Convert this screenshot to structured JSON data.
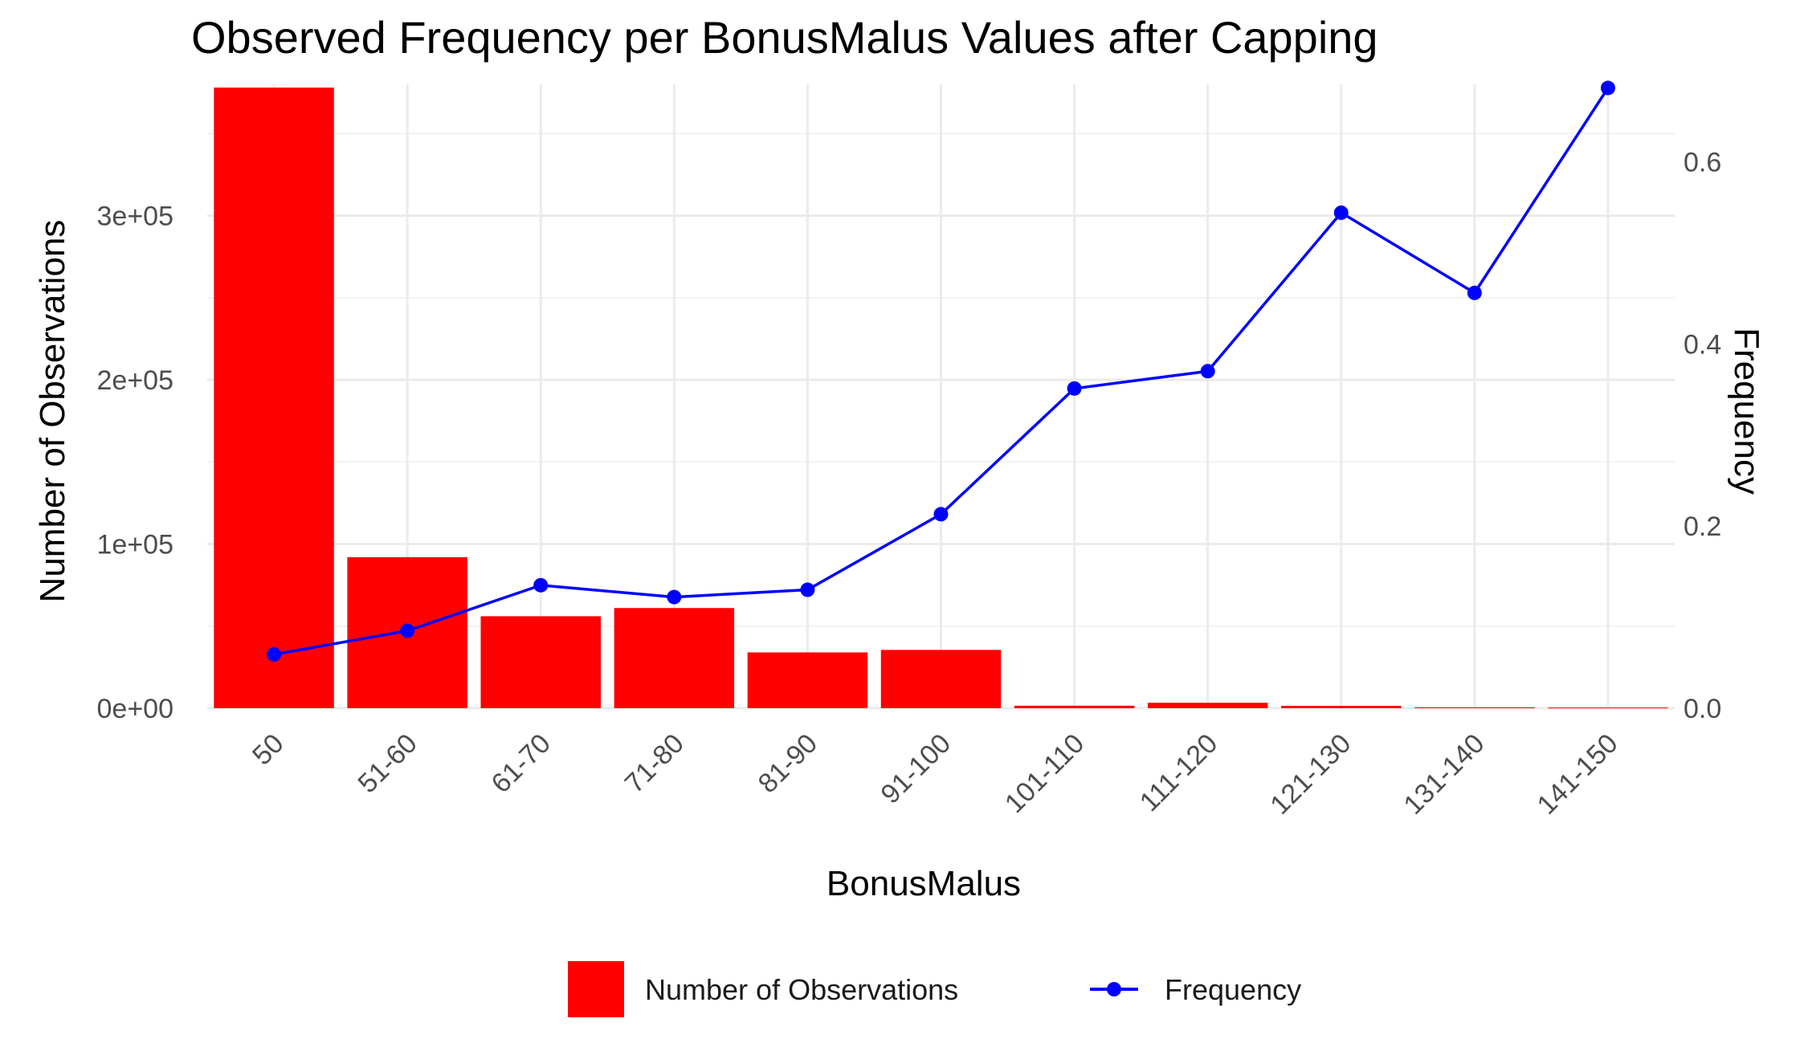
{
  "chart_data": {
    "type": "bar",
    "title": "Observed Frequency per BonusMalus Values after Capping",
    "xlabel": "BonusMalus",
    "ylabel": "Number of Observations",
    "y2label": "Frequency",
    "categories": [
      "50",
      "51-60",
      "61-70",
      "71-80",
      "81-90",
      "91-100",
      "101-110",
      "111-120",
      "121-130",
      "131-140",
      "141-150"
    ],
    "series": [
      {
        "name": "Number of Observations",
        "kind": "bar",
        "axis": "left",
        "color": "#ff0000",
        "values": [
          378000,
          92000,
          56000,
          61000,
          34000,
          35500,
          1500,
          3300,
          1400,
          500,
          400
        ]
      },
      {
        "name": "Frequency",
        "kind": "line",
        "axis": "right",
        "color": "#0000ff",
        "values": [
          0.059,
          0.085,
          0.135,
          0.122,
          0.13,
          0.213,
          0.351,
          0.37,
          0.544,
          0.456,
          0.681
        ]
      }
    ],
    "ylim": [
      0,
      380000
    ],
    "y_ticks": [
      0,
      100000,
      200000,
      300000
    ],
    "y_tick_labels": [
      "0e+00",
      "1e+05",
      "2e+05",
      "3e+05"
    ],
    "y2lim": [
      0,
      0.685
    ],
    "y2_ticks": [
      0,
      0.2,
      0.4,
      0.6
    ],
    "y2_tick_labels": [
      "0.0",
      "0.2",
      "0.4",
      "0.6"
    ],
    "grid": true,
    "legend": {
      "placement": "bottom",
      "items": [
        {
          "label": "Number of Observations",
          "kind": "bar"
        },
        {
          "label": "Frequency",
          "kind": "line"
        }
      ]
    }
  }
}
